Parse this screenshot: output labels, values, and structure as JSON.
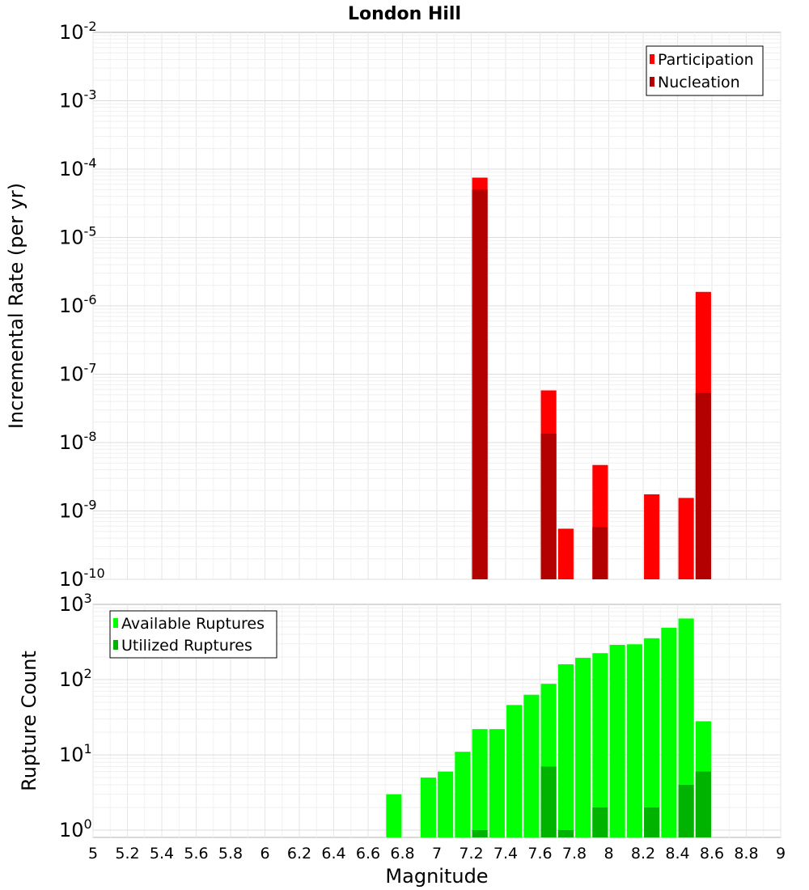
{
  "chart_data": [
    {
      "type": "bar",
      "title": "London Hill",
      "xlabel": "",
      "ylabel": "Incremental Rate (per yr)",
      "xlim": [
        5,
        9
      ],
      "ylim": [
        1e-10,
        0.01
      ],
      "y_scale": "log",
      "y_ticks": [
        {
          "base": "10",
          "exp": "-10"
        },
        {
          "base": "10",
          "exp": "-9"
        },
        {
          "base": "10",
          "exp": "-8"
        },
        {
          "base": "10",
          "exp": "-7"
        },
        {
          "base": "10",
          "exp": "-6"
        },
        {
          "base": "10",
          "exp": "-5"
        },
        {
          "base": "10",
          "exp": "-4"
        },
        {
          "base": "10",
          "exp": "-3"
        },
        {
          "base": "10",
          "exp": "-2"
        }
      ],
      "grid": true,
      "legend_position": "top-right",
      "series": [
        {
          "name": "Participation",
          "color": "#ff0000",
          "x": [
            7.25,
            7.65,
            7.75,
            7.95,
            8.25,
            8.45,
            8.55
          ],
          "values": [
            7.5e-05,
            5.8e-08,
            5.5e-10,
            4.7e-09,
            1.75e-09,
            1.55e-09,
            1.6e-06
          ]
        },
        {
          "name": "Nucleation",
          "color": "#b30000",
          "x": [
            7.25,
            7.65,
            7.95,
            8.55
          ],
          "values": [
            5e-05,
            1.35e-08,
            5.8e-10,
            5.3e-08
          ]
        }
      ]
    },
    {
      "type": "bar",
      "title": "",
      "xlabel": "Magnitude",
      "ylabel": "Rupture Count",
      "xlim": [
        5,
        9
      ],
      "ylim": [
        0.8,
        1000
      ],
      "y_scale": "log",
      "x_ticks": [
        "5",
        "5.2",
        "5.4",
        "5.6",
        "5.8",
        "6",
        "6.2",
        "6.4",
        "6.6",
        "6.8",
        "7",
        "7.2",
        "7.4",
        "7.6",
        "7.8",
        "8",
        "8.2",
        "8.4",
        "8.6",
        "8.8",
        "9"
      ],
      "y_ticks": [
        {
          "base": "10",
          "exp": "0"
        },
        {
          "base": "10",
          "exp": "1"
        },
        {
          "base": "10",
          "exp": "2"
        },
        {
          "base": "10",
          "exp": "3"
        }
      ],
      "grid": true,
      "legend_position": "top-left",
      "series": [
        {
          "name": "Available Ruptures",
          "color": "#00ff00",
          "x": [
            6.75,
            6.95,
            7.05,
            7.15,
            7.25,
            7.35,
            7.45,
            7.55,
            7.65,
            7.75,
            7.85,
            7.95,
            8.05,
            8.15,
            8.25,
            8.35,
            8.45,
            8.55
          ],
          "values": [
            3,
            5,
            6,
            11,
            22,
            22,
            46,
            63,
            88,
            160,
            195,
            225,
            290,
            295,
            355,
            490,
            650,
            28
          ]
        },
        {
          "name": "Utilized Ruptures",
          "color": "#00b300",
          "x": [
            7.25,
            7.65,
            7.75,
            7.95,
            8.25,
            8.45,
            8.55
          ],
          "values": [
            1,
            7,
            1,
            2,
            2,
            4,
            6
          ]
        }
      ]
    }
  ]
}
